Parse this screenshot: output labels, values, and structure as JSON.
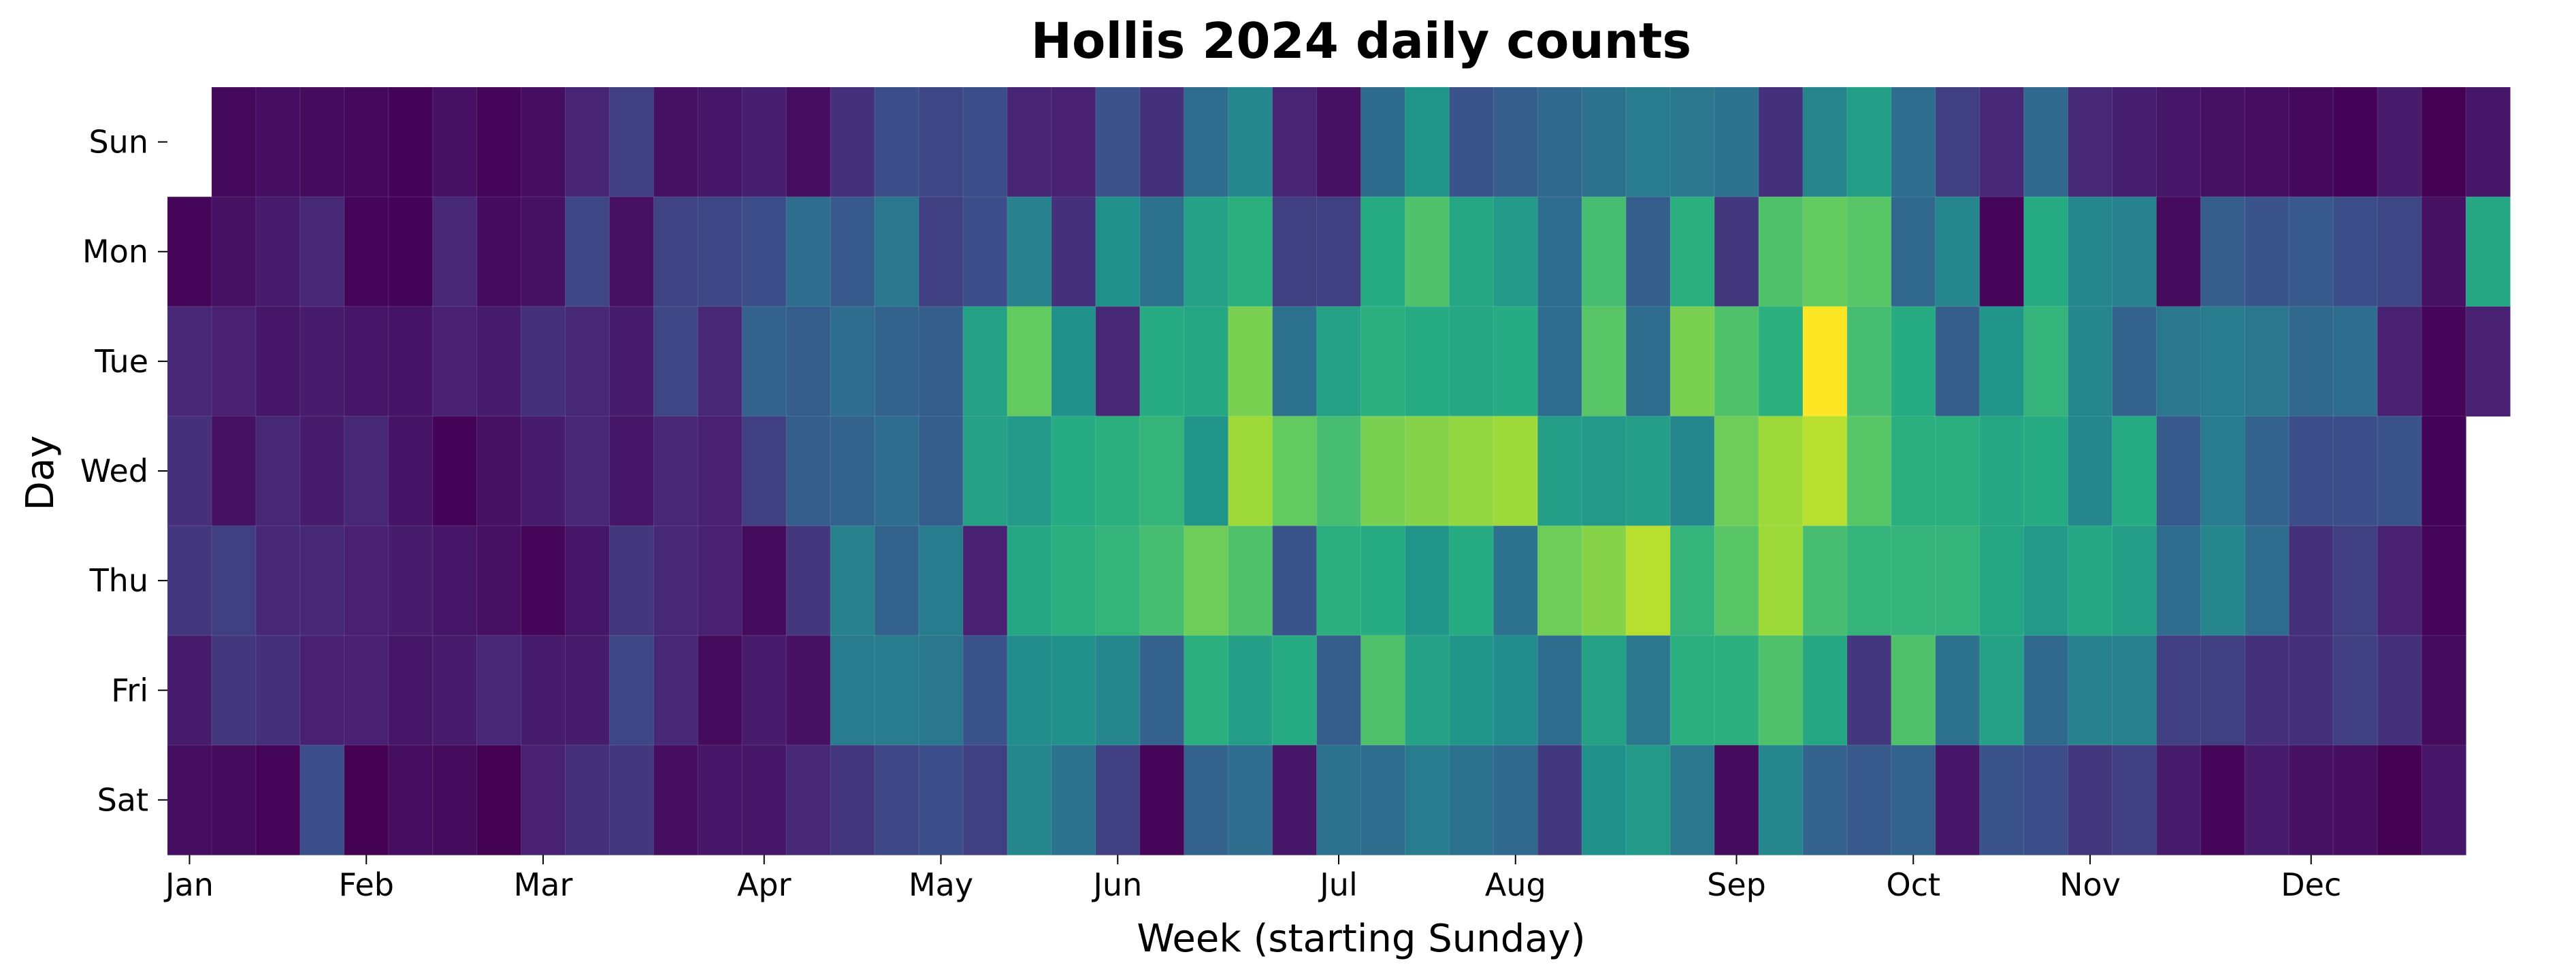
{
  "chart_data": {
    "type": "heatmap",
    "title": "Hollis 2024 daily counts",
    "xlabel": "Week (starting Sunday)",
    "ylabel": "Day",
    "rows": [
      "Sun",
      "Mon",
      "Tue",
      "Wed",
      "Thu",
      "Fri",
      "Sat"
    ],
    "x_tick_labels": [
      {
        "label": "Jan",
        "week": 0
      },
      {
        "label": "Feb",
        "week": 4
      },
      {
        "label": "Mar",
        "week": 8
      },
      {
        "label": "Apr",
        "week": 13
      },
      {
        "label": "May",
        "week": 17
      },
      {
        "label": "Jun",
        "week": 21
      },
      {
        "label": "Jul",
        "week": 26
      },
      {
        "label": "Aug",
        "week": 30
      },
      {
        "label": "Sep",
        "week": 35
      },
      {
        "label": "Oct",
        "week": 39
      },
      {
        "label": "Nov",
        "week": 43
      },
      {
        "label": "Dec",
        "week": 48
      }
    ],
    "num_weeks": 53,
    "colormap": "viridis",
    "value_range": [
      0,
      1
    ],
    "grid": false,
    "legend": "none",
    "values": [
      [
        null,
        0.03,
        0.05,
        0.04,
        0.03,
        0.01,
        0.06,
        0.02,
        0.05,
        0.13,
        0.2,
        0.06,
        0.08,
        0.11,
        0.05,
        0.16,
        0.24,
        0.22,
        0.24,
        0.13,
        0.12,
        0.25,
        0.16,
        0.36,
        0.46,
        0.13,
        0.06,
        0.35,
        0.52,
        0.26,
        0.3,
        0.34,
        0.38,
        0.42,
        0.4,
        0.38,
        0.16,
        0.45,
        0.56,
        0.36,
        0.2,
        0.14,
        0.34,
        0.14,
        0.11,
        0.08,
        0.06,
        0.05,
        0.03,
        0.01,
        0.1,
        0.0,
        0.08
      ],
      [
        0.02,
        0.06,
        0.1,
        0.14,
        0.02,
        0.01,
        0.14,
        0.04,
        0.06,
        0.22,
        0.06,
        0.21,
        0.22,
        0.24,
        0.36,
        0.28,
        0.4,
        0.2,
        0.24,
        0.44,
        0.16,
        0.5,
        0.38,
        0.58,
        0.64,
        0.2,
        0.2,
        0.62,
        0.72,
        0.6,
        0.54,
        0.36,
        0.7,
        0.3,
        0.64,
        0.18,
        0.72,
        0.76,
        0.74,
        0.34,
        0.46,
        0.02,
        0.62,
        0.46,
        0.44,
        0.04,
        0.3,
        0.26,
        0.28,
        0.24,
        0.22,
        0.06,
        0.6
      ],
      [
        0.14,
        0.12,
        0.08,
        0.1,
        0.08,
        0.07,
        0.12,
        0.1,
        0.16,
        0.14,
        0.1,
        0.22,
        0.14,
        0.32,
        0.3,
        0.36,
        0.32,
        0.3,
        0.58,
        0.76,
        0.5,
        0.14,
        0.62,
        0.6,
        0.8,
        0.38,
        0.58,
        0.64,
        0.62,
        0.6,
        0.62,
        0.36,
        0.74,
        0.36,
        0.8,
        0.72,
        0.64,
        1.0,
        0.7,
        0.62,
        0.3,
        0.52,
        0.66,
        0.46,
        0.32,
        0.4,
        0.42,
        0.4,
        0.34,
        0.36,
        0.12,
        0.02,
        0.12
      ],
      [
        0.16,
        0.06,
        0.14,
        0.1,
        0.14,
        0.07,
        0.01,
        0.06,
        0.1,
        0.14,
        0.08,
        0.14,
        0.12,
        0.2,
        0.3,
        0.32,
        0.36,
        0.3,
        0.58,
        0.54,
        0.62,
        0.64,
        0.66,
        0.52,
        0.86,
        0.76,
        0.7,
        0.8,
        0.82,
        0.84,
        0.86,
        0.56,
        0.54,
        0.56,
        0.46,
        0.78,
        0.86,
        0.9,
        0.74,
        0.64,
        0.64,
        0.6,
        0.62,
        0.46,
        0.62,
        0.28,
        0.42,
        0.32,
        0.24,
        0.24,
        0.26,
        0.01,
        null
      ],
      [
        0.18,
        0.2,
        0.14,
        0.14,
        0.12,
        0.1,
        0.08,
        0.06,
        0.02,
        0.08,
        0.18,
        0.14,
        0.12,
        0.04,
        0.18,
        0.44,
        0.32,
        0.42,
        0.12,
        0.6,
        0.64,
        0.66,
        0.7,
        0.78,
        0.72,
        0.26,
        0.64,
        0.62,
        0.52,
        0.62,
        0.38,
        0.78,
        0.82,
        0.9,
        0.66,
        0.74,
        0.86,
        0.7,
        0.66,
        0.66,
        0.66,
        0.6,
        0.54,
        0.6,
        0.56,
        0.36,
        0.46,
        0.36,
        0.16,
        0.2,
        0.12,
        0.02,
        null
      ],
      [
        0.1,
        0.18,
        0.16,
        0.12,
        0.12,
        0.08,
        0.1,
        0.14,
        0.1,
        0.1,
        0.22,
        0.14,
        0.04,
        0.1,
        0.06,
        0.42,
        0.42,
        0.4,
        0.26,
        0.48,
        0.5,
        0.46,
        0.32,
        0.64,
        0.56,
        0.62,
        0.3,
        0.72,
        0.58,
        0.52,
        0.48,
        0.36,
        0.58,
        0.4,
        0.64,
        0.64,
        0.72,
        0.6,
        0.18,
        0.72,
        0.38,
        0.58,
        0.34,
        0.44,
        0.44,
        0.2,
        0.2,
        0.16,
        0.16,
        0.2,
        0.16,
        0.04,
        null
      ],
      [
        0.05,
        0.04,
        0.02,
        0.24,
        0.0,
        0.05,
        0.04,
        0.0,
        0.12,
        0.16,
        0.18,
        0.05,
        0.08,
        0.08,
        0.14,
        0.18,
        0.22,
        0.24,
        0.2,
        0.46,
        0.38,
        0.2,
        0.02,
        0.32,
        0.36,
        0.08,
        0.38,
        0.36,
        0.42,
        0.38,
        0.34,
        0.18,
        0.5,
        0.54,
        0.4,
        0.04,
        0.46,
        0.32,
        0.28,
        0.32,
        0.08,
        0.26,
        0.24,
        0.18,
        0.2,
        0.1,
        0.02,
        0.1,
        0.06,
        0.05,
        0.0,
        0.08,
        null
      ]
    ]
  }
}
